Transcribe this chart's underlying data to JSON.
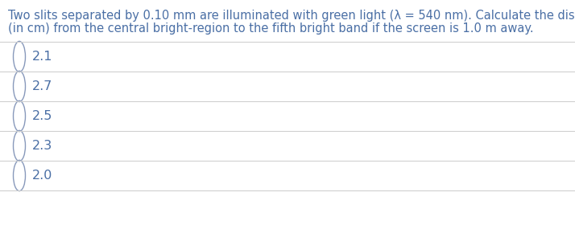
{
  "question_line1": "Two slits separated by 0.10 mm are illuminated with green light (λ = 540 nm). Calculate the distance",
  "question_line2": "(in cm) from the central bright-region to the fifth bright band if the screen is 1.0 m away.",
  "options": [
    "2.1",
    "2.7",
    "2.5",
    "2.3",
    "2.0"
  ],
  "text_color": "#4a6fa5",
  "question_color": "#4a6fa5",
  "line_color": "#D0D0D0",
  "background_color": "#FFFFFF",
  "font_size_question": 10.5,
  "font_size_options": 11.5,
  "circle_color": "#8899bb"
}
